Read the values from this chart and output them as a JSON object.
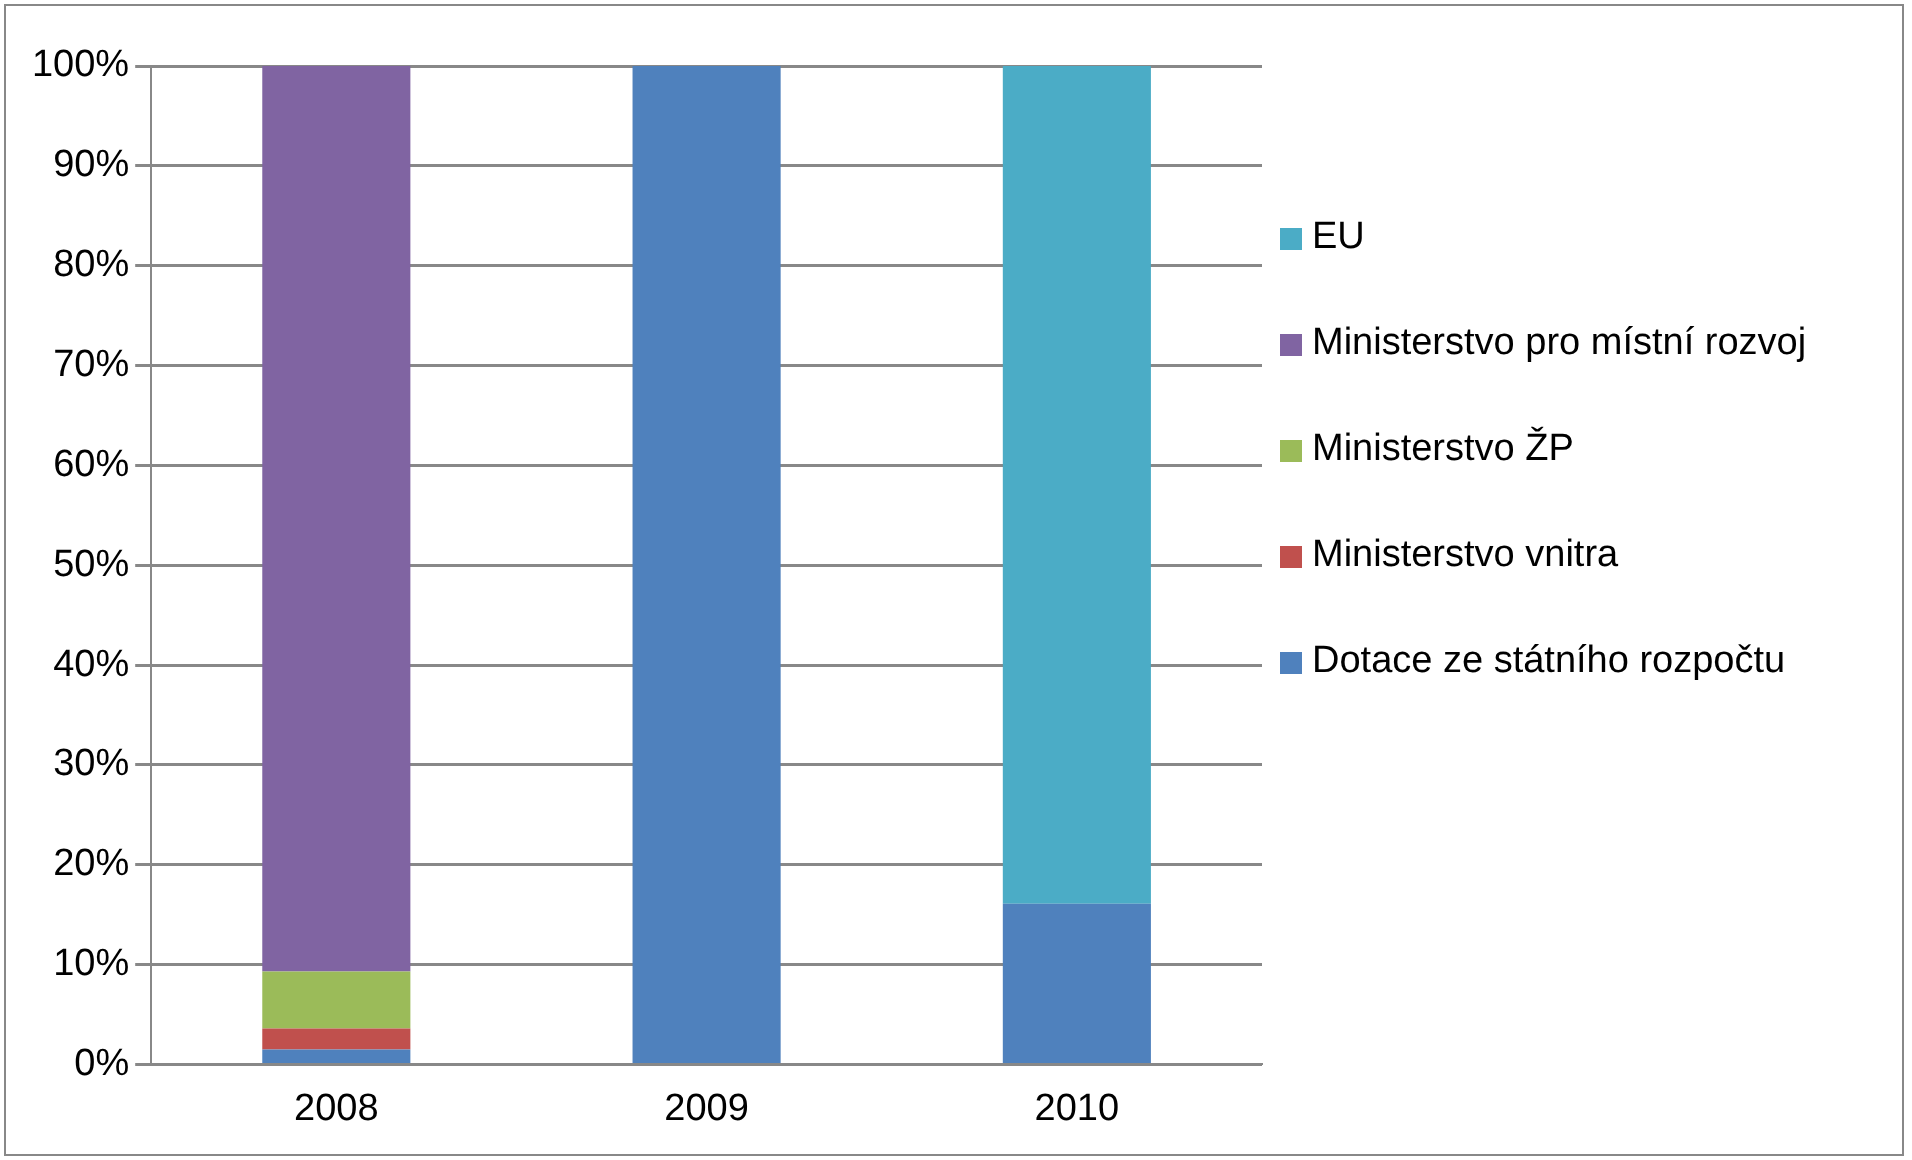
{
  "chart_data": {
    "type": "bar",
    "stacked": true,
    "categories": [
      "2008",
      "2009",
      "2010"
    ],
    "series": [
      {
        "name": "Dotace ze státního rozpočtu",
        "color": "#4f81bd",
        "values": [
          1.5,
          100,
          16.1
        ]
      },
      {
        "name": "Ministerstvo vnitra",
        "color": "#c0504d",
        "values": [
          2.1,
          0,
          0
        ]
      },
      {
        "name": "Ministerstvo ŽP",
        "color": "#9bbb59",
        "values": [
          5.7,
          0,
          0
        ]
      },
      {
        "name": "Ministerstvo pro místní rozvoj",
        "color": "#8064a2",
        "values": [
          90.7,
          0,
          0
        ]
      },
      {
        "name": "EU",
        "color": "#4bacc6",
        "values": [
          0,
          0,
          83.9
        ]
      }
    ],
    "ylim": [
      0,
      100
    ],
    "yticks": [
      {
        "value": 0,
        "label": "0%"
      },
      {
        "value": 10,
        "label": "10%"
      },
      {
        "value": 20,
        "label": "20%"
      },
      {
        "value": 30,
        "label": "30%"
      },
      {
        "value": 40,
        "label": "40%"
      },
      {
        "value": 50,
        "label": "50%"
      },
      {
        "value": 60,
        "label": "60%"
      },
      {
        "value": 70,
        "label": "70%"
      },
      {
        "value": 80,
        "label": "80%"
      },
      {
        "value": 90,
        "label": "90%"
      },
      {
        "value": 100,
        "label": "100%"
      }
    ],
    "grid": "y",
    "legend": "right"
  }
}
